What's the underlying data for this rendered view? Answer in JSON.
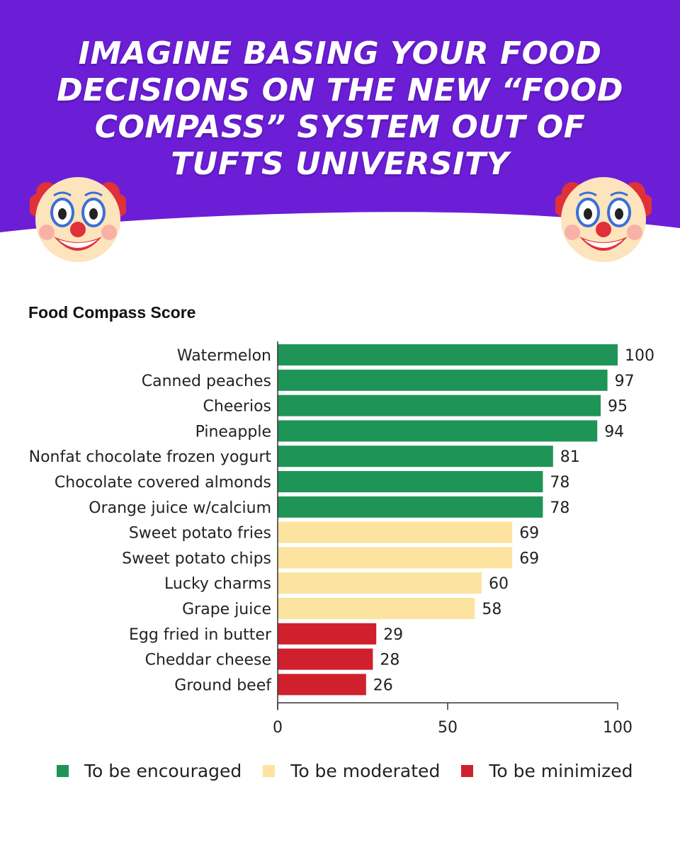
{
  "banner": {
    "headline": "IMAGINE BASING YOUR FOOD\nDECISIONS ON THE NEW “FOOD\nCOMPASS” SYSTEM OUT OF\nTUFTS UNIVERSITY",
    "background_color": "#6c1ed6",
    "emoji_left": "clown-face-icon",
    "emoji_right": "clown-face-icon"
  },
  "chart_data": {
    "type": "bar",
    "orientation": "horizontal",
    "title": "Food Compass Score",
    "categories": [
      "Watermelon",
      "Canned peaches",
      "Cheerios",
      "Pineapple",
      "Nonfat chocolate frozen yogurt",
      "Chocolate covered almonds",
      "Orange juice w/calcium",
      "Sweet potato fries",
      "Sweet potato chips",
      "Lucky charms",
      "Grape juice",
      "Egg fried in butter",
      "Cheddar cheese",
      "Ground beef"
    ],
    "values": [
      100,
      97,
      95,
      94,
      81,
      78,
      78,
      69,
      69,
      60,
      58,
      29,
      28,
      26
    ],
    "groups": [
      "encouraged",
      "encouraged",
      "encouraged",
      "encouraged",
      "encouraged",
      "encouraged",
      "encouraged",
      "moderated",
      "moderated",
      "moderated",
      "moderated",
      "minimized",
      "minimized",
      "minimized"
    ],
    "xlim": [
      0,
      100
    ],
    "xticks": [
      0,
      50,
      100
    ],
    "grid": false,
    "legend_position": "bottom",
    "legend": [
      {
        "key": "encouraged",
        "label": "To be encouraged",
        "color": "#1f9457"
      },
      {
        "key": "moderated",
        "label": "To be moderated",
        "color": "#fde3a0"
      },
      {
        "key": "minimized",
        "label": "To be minimized",
        "color": "#d0202e"
      }
    ]
  }
}
